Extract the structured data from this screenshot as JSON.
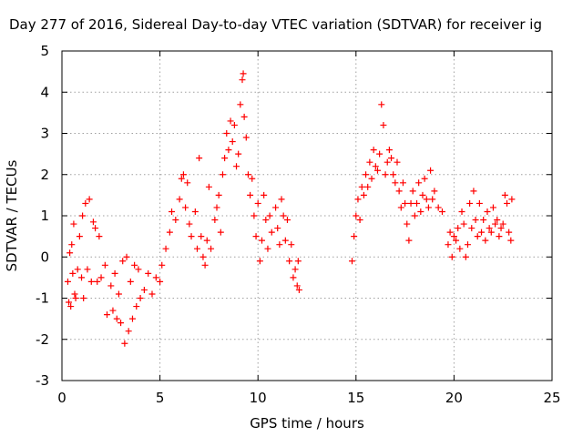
{
  "chart_data": {
    "type": "scatter",
    "title": "Day 277 of 2016, Sidereal Day-to-day VTEC variation (SDTVAR) for receiver ig",
    "xlabel": "GPS time / hours",
    "ylabel": "SDTVAR / TECUs",
    "xlim": [
      0,
      25
    ],
    "ylim": [
      -3,
      5
    ],
    "x_ticks": [
      "0",
      "5",
      "10",
      "15",
      "20",
      "25"
    ],
    "y_ticks": [
      "-3",
      "-2",
      "-1",
      "0",
      "1",
      "2",
      "3",
      "4",
      "5"
    ],
    "grid": true,
    "marker": "plus",
    "color": "#ff0000",
    "series": [
      {
        "values": [
          [
            0.3,
            -0.6
          ],
          [
            0.35,
            -1.1
          ],
          [
            0.4,
            0.1
          ],
          [
            0.45,
            -1.2
          ],
          [
            0.5,
            0.3
          ],
          [
            0.55,
            -0.4
          ],
          [
            0.6,
            0.8
          ],
          [
            0.65,
            -0.9
          ],
          [
            0.7,
            -1.0
          ],
          [
            0.8,
            -0.3
          ],
          [
            0.9,
            0.5
          ],
          [
            1.0,
            -0.5
          ],
          [
            1.05,
            1.0
          ],
          [
            1.1,
            -1.0
          ],
          [
            1.2,
            1.3
          ],
          [
            1.3,
            -0.3
          ],
          [
            1.4,
            1.4
          ],
          [
            1.5,
            -0.6
          ],
          [
            1.6,
            0.85
          ],
          [
            1.7,
            0.7
          ],
          [
            1.8,
            -0.6
          ],
          [
            1.9,
            0.5
          ],
          [
            2.0,
            -0.5
          ],
          [
            2.2,
            -0.2
          ],
          [
            2.3,
            -1.4
          ],
          [
            2.5,
            -0.7
          ],
          [
            2.6,
            -1.3
          ],
          [
            2.7,
            -0.4
          ],
          [
            2.8,
            -1.5
          ],
          [
            2.9,
            -0.9
          ],
          [
            3.0,
            -1.6
          ],
          [
            3.1,
            -0.1
          ],
          [
            3.2,
            -2.1
          ],
          [
            3.3,
            0.0
          ],
          [
            3.4,
            -1.8
          ],
          [
            3.5,
            -0.6
          ],
          [
            3.6,
            -1.5
          ],
          [
            3.7,
            -0.2
          ],
          [
            3.8,
            -1.2
          ],
          [
            3.9,
            -0.3
          ],
          [
            4.0,
            -1.0
          ],
          [
            4.2,
            -0.8
          ],
          [
            4.4,
            -0.4
          ],
          [
            4.6,
            -0.9
          ],
          [
            4.8,
            -0.5
          ],
          [
            5.0,
            -0.6
          ],
          [
            5.1,
            -0.2
          ],
          [
            5.3,
            0.2
          ],
          [
            5.5,
            0.6
          ],
          [
            5.6,
            1.1
          ],
          [
            5.8,
            0.9
          ],
          [
            6.0,
            1.4
          ],
          [
            6.1,
            1.9
          ],
          [
            6.2,
            2.0
          ],
          [
            6.3,
            1.2
          ],
          [
            6.4,
            1.8
          ],
          [
            6.5,
            0.8
          ],
          [
            6.6,
            0.5
          ],
          [
            6.8,
            1.1
          ],
          [
            6.9,
            0.2
          ],
          [
            7.0,
            2.4
          ],
          [
            7.1,
            0.5
          ],
          [
            7.2,
            0.0
          ],
          [
            7.3,
            -0.2
          ],
          [
            7.4,
            0.4
          ],
          [
            7.5,
            1.7
          ],
          [
            7.6,
            0.2
          ],
          [
            7.8,
            0.9
          ],
          [
            7.9,
            1.2
          ],
          [
            8.0,
            1.5
          ],
          [
            8.1,
            0.6
          ],
          [
            8.2,
            2.0
          ],
          [
            8.3,
            2.4
          ],
          [
            8.4,
            3.0
          ],
          [
            8.5,
            2.6
          ],
          [
            8.6,
            3.3
          ],
          [
            8.7,
            2.8
          ],
          [
            8.8,
            3.2
          ],
          [
            8.9,
            2.2
          ],
          [
            9.0,
            2.5
          ],
          [
            9.1,
            3.7
          ],
          [
            9.2,
            4.3
          ],
          [
            9.25,
            4.45
          ],
          [
            9.3,
            3.4
          ],
          [
            9.4,
            2.9
          ],
          [
            9.5,
            2.0
          ],
          [
            9.6,
            1.5
          ],
          [
            9.7,
            1.9
          ],
          [
            9.8,
            1.0
          ],
          [
            9.9,
            0.5
          ],
          [
            10.0,
            1.3
          ],
          [
            10.1,
            -0.1
          ],
          [
            10.2,
            0.4
          ],
          [
            10.3,
            1.5
          ],
          [
            10.4,
            0.9
          ],
          [
            10.5,
            0.2
          ],
          [
            10.6,
            1.0
          ],
          [
            10.7,
            0.6
          ],
          [
            10.9,
            1.2
          ],
          [
            11.0,
            0.7
          ],
          [
            11.1,
            0.3
          ],
          [
            11.2,
            1.4
          ],
          [
            11.3,
            1.0
          ],
          [
            11.4,
            0.4
          ],
          [
            11.5,
            0.9
          ],
          [
            11.6,
            -0.1
          ],
          [
            11.7,
            0.3
          ],
          [
            11.8,
            -0.5
          ],
          [
            11.9,
            -0.3
          ],
          [
            12.0,
            -0.7
          ],
          [
            12.05,
            -0.1
          ],
          [
            12.1,
            -0.8
          ],
          [
            14.8,
            -0.1
          ],
          [
            14.9,
            0.5
          ],
          [
            15.0,
            1.0
          ],
          [
            15.1,
            1.4
          ],
          [
            15.2,
            0.9
          ],
          [
            15.3,
            1.7
          ],
          [
            15.4,
            1.5
          ],
          [
            15.5,
            2.0
          ],
          [
            15.6,
            1.7
          ],
          [
            15.7,
            2.3
          ],
          [
            15.8,
            1.9
          ],
          [
            15.9,
            2.6
          ],
          [
            16.0,
            2.2
          ],
          [
            16.1,
            2.1
          ],
          [
            16.2,
            2.5
          ],
          [
            16.3,
            3.7
          ],
          [
            16.4,
            3.2
          ],
          [
            16.5,
            2.0
          ],
          [
            16.6,
            2.3
          ],
          [
            16.7,
            2.6
          ],
          [
            16.8,
            2.4
          ],
          [
            16.9,
            2.0
          ],
          [
            17.0,
            1.8
          ],
          [
            17.1,
            2.3
          ],
          [
            17.2,
            1.6
          ],
          [
            17.3,
            1.2
          ],
          [
            17.4,
            1.8
          ],
          [
            17.5,
            1.3
          ],
          [
            17.6,
            0.8
          ],
          [
            17.7,
            0.4
          ],
          [
            17.8,
            1.3
          ],
          [
            17.9,
            1.6
          ],
          [
            18.0,
            1.0
          ],
          [
            18.1,
            1.3
          ],
          [
            18.2,
            1.8
          ],
          [
            18.3,
            1.1
          ],
          [
            18.4,
            1.5
          ],
          [
            18.5,
            1.9
          ],
          [
            18.6,
            1.4
          ],
          [
            18.7,
            1.2
          ],
          [
            18.8,
            2.1
          ],
          [
            18.9,
            1.4
          ],
          [
            19.0,
            1.6
          ],
          [
            19.2,
            1.2
          ],
          [
            19.4,
            1.1
          ],
          [
            19.7,
            0.3
          ],
          [
            19.8,
            0.6
          ],
          [
            19.9,
            0.0
          ],
          [
            20.0,
            0.5
          ],
          [
            20.1,
            0.4
          ],
          [
            20.2,
            0.7
          ],
          [
            20.3,
            0.2
          ],
          [
            20.4,
            1.1
          ],
          [
            20.5,
            0.8
          ],
          [
            20.6,
            0.0
          ],
          [
            20.7,
            0.3
          ],
          [
            20.8,
            1.3
          ],
          [
            20.9,
            0.7
          ],
          [
            21.0,
            1.6
          ],
          [
            21.1,
            0.9
          ],
          [
            21.2,
            0.5
          ],
          [
            21.3,
            1.3
          ],
          [
            21.4,
            0.6
          ],
          [
            21.5,
            0.9
          ],
          [
            21.6,
            0.4
          ],
          [
            21.7,
            1.1
          ],
          [
            21.8,
            0.7
          ],
          [
            21.9,
            0.6
          ],
          [
            22.0,
            1.2
          ],
          [
            22.1,
            0.8
          ],
          [
            22.2,
            0.9
          ],
          [
            22.3,
            0.5
          ],
          [
            22.4,
            0.7
          ],
          [
            22.5,
            0.8
          ],
          [
            22.6,
            1.5
          ],
          [
            22.7,
            1.3
          ],
          [
            22.8,
            0.6
          ],
          [
            22.9,
            0.4
          ],
          [
            22.95,
            1.4
          ]
        ]
      }
    ]
  }
}
